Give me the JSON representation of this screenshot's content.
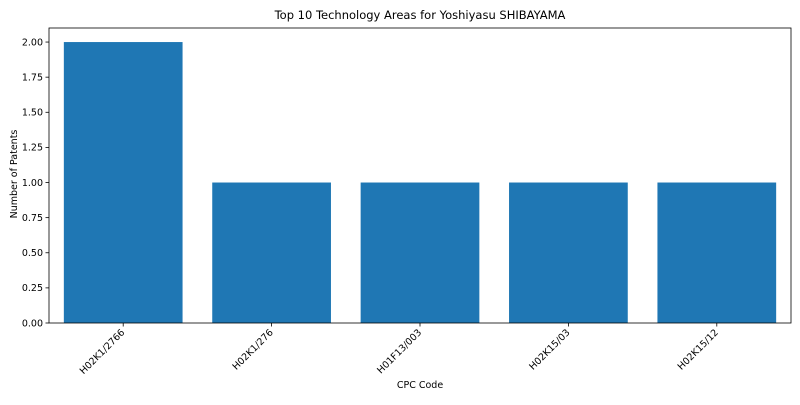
{
  "chart_data": {
    "type": "bar",
    "title": "Top 10 Technology Areas for Yoshiyasu SHIBAYAMA",
    "xlabel": "CPC Code",
    "ylabel": "Number of Patents",
    "categories": [
      "H02K1/2766",
      "H02K1/276",
      "H01F13/003",
      "H02K15/03",
      "H02K15/12"
    ],
    "values": [
      2,
      1,
      1,
      1,
      1
    ],
    "ylim": [
      0,
      2.1
    ],
    "yticks": [
      "0.00",
      "0.25",
      "0.50",
      "0.75",
      "1.00",
      "1.25",
      "1.50",
      "1.75",
      "2.00"
    ],
    "bar_color": "#1f77b4",
    "grid": false,
    "legend": "none"
  }
}
